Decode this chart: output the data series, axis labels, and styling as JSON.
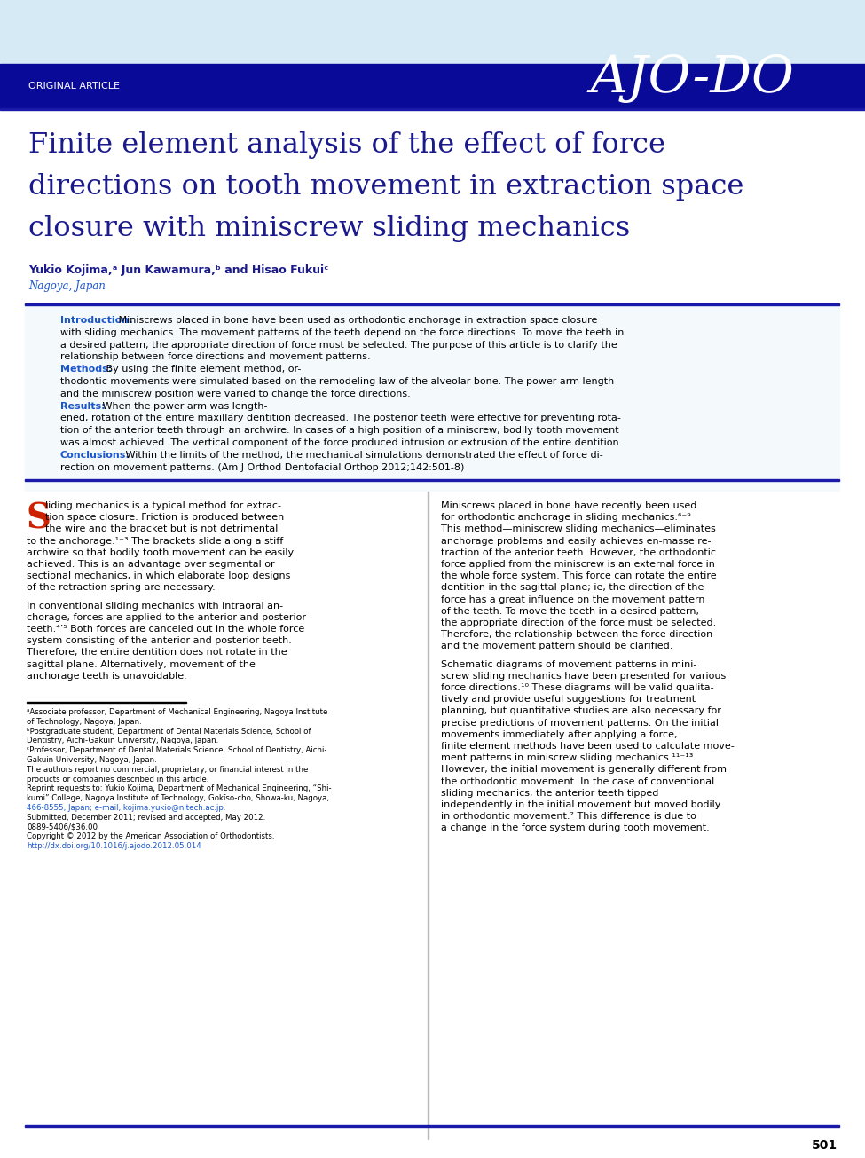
{
  "page_bg": "#ffffff",
  "header_light_bg": "#d6eaf5",
  "header_dark_bg": "#0a0a99",
  "header_text": "ORIGINAL ARTICLE",
  "journal_name": "AJO-DO",
  "title_line1": "Finite element analysis of the effect of force",
  "title_line2": "directions on tooth movement in extraction space",
  "title_line3": "closure with miniscrew sliding mechanics",
  "authors": "Yukio Kojima,ᵃ Jun Kawamura,ᵇ and Hisao Fukuiᶜ",
  "location": "Nagoya, Japan",
  "abstract_lines": [
    [
      "Introduction:",
      " Miniscrews placed in bone have been used as orthodontic anchorage in extraction space closure"
    ],
    [
      "",
      "with sliding mechanics. The movement patterns of the teeth depend on the force directions. To move the teeth in"
    ],
    [
      "",
      "a desired pattern, the appropriate direction of force must be selected. The purpose of this article is to clarify the"
    ],
    [
      "",
      "relationship between force directions and movement patterns. "
    ],
    [
      "Methods:",
      " By using the finite element method, or-"
    ],
    [
      "",
      "thodontic movements were simulated based on the remodeling law of the alveolar bone. The power arm length"
    ],
    [
      "",
      "and the miniscrew position were varied to change the force directions. "
    ],
    [
      "Results:",
      " When the power arm was length-"
    ],
    [
      "",
      "ened, rotation of the entire maxillary dentition decreased. The posterior teeth were effective for preventing rota-"
    ],
    [
      "",
      "tion of the anterior teeth through an archwire. In cases of a high position of a miniscrew, bodily tooth movement"
    ],
    [
      "",
      "was almost achieved. The vertical component of the force produced intrusion or extrusion of the entire dentition."
    ],
    [
      "Conclusions:",
      " Within the limits of the method, the mechanical simulations demonstrated the effect of force di-"
    ],
    [
      "",
      "rection on movement patterns. (Am J Orthod Dentofacial Orthop 2012;142:501-8)"
    ]
  ],
  "label_widths": {
    "Introduction:": 62,
    "Methods:": 48,
    "Results:": 44,
    "Conclusions:": 70
  },
  "col1_p1": [
    "liding mechanics is a typical method for extrac-",
    "tion space closure. Friction is produced between",
    "the wire and the bracket but is not detrimental",
    "to the anchorage.¹⁻³ The brackets slide along a stiff",
    "archwire so that bodily tooth movement can be easily",
    "achieved. This is an advantage over segmental or",
    "sectional mechanics, in which elaborate loop designs",
    "of the retraction spring are necessary."
  ],
  "col1_p2": [
    "In conventional sliding mechanics with intraoral an-",
    "chorage, forces are applied to the anterior and posterior",
    "teeth.⁴’⁵ Both forces are canceled out in the whole force",
    "system consisting of the anterior and posterior teeth.",
    "Therefore, the entire dentition does not rotate in the",
    "sagittal plane. Alternatively, movement of the",
    "anchorage teeth is unavoidable."
  ],
  "col2_p1": [
    "Miniscrews placed in bone have recently been used",
    "for orthodontic anchorage in sliding mechanics.⁶⁻⁹",
    "This method—miniscrew sliding mechanics—eliminates",
    "anchorage problems and easily achieves en-masse re-",
    "traction of the anterior teeth. However, the orthodontic",
    "force applied from the miniscrew is an external force in",
    "the whole force system. This force can rotate the entire",
    "dentition in the sagittal plane; ie, the direction of the",
    "force has a great influence on the movement pattern",
    "of the teeth. To move the teeth in a desired pattern,",
    "the appropriate direction of the force must be selected.",
    "Therefore, the relationship between the force direction",
    "and the movement pattern should be clarified."
  ],
  "col2_p2": [
    "Schematic diagrams of movement patterns in mini-",
    "screw sliding mechanics have been presented for various",
    "force directions.¹⁰ These diagrams will be valid qualita-",
    "tively and provide useful suggestions for treatment",
    "planning, but quantitative studies are also necessary for",
    "precise predictions of movement patterns. On the initial",
    "movements immediately after applying a force,",
    "finite element methods have been used to calculate move-",
    "ment patterns in miniscrew sliding mechanics.¹¹⁻¹³",
    "However, the initial movement is generally different from",
    "the orthodontic movement. In the case of conventional",
    "sliding mechanics, the anterior teeth tipped",
    "independently in the initial movement but moved bodily",
    "in orthodontic movement.² This difference is due to",
    "a change in the force system during tooth movement."
  ],
  "footnote_lines": [
    "ᵃAssociate professor, Department of Mechanical Engineering, Nagoya Institute",
    "of Technology, Nagoya, Japan.",
    "ᵇPostgraduate student, Department of Dental Materials Science, School of",
    "Dentistry, Aichi-Gakuin University, Nagoya, Japan.",
    "ᶜProfessor, Department of Dental Materials Science, School of Dentistry, Aichi-",
    "Gakuin University, Nagoya, Japan.",
    "The authors report no commercial, proprietary, or financial interest in the",
    "products or companies described in this article.",
    "Reprint requests to: Yukio Kojima, Department of Mechanical Engineering, “Shi-",
    "kumi” College, Nagoya Institute of Technology, Gokīso-cho, Showa-ku, Nagoya,",
    "466-8555, Japan; e-mail, kojima.yukio@nitech.ac.jp.",
    "Submitted, December 2011; revised and accepted, May 2012.",
    "0889-5406/$36.00",
    "Copyright © 2012 by the American Association of Orthodontists.",
    "http://dx.doi.org/10.1016/j.ajodo.2012.05.014"
  ],
  "page_number": "501",
  "dark_blue": "#000080",
  "title_blue": "#1a1a8c",
  "accent_blue": "#1a56cc",
  "drop_cap_red": "#cc2200",
  "link_blue": "#1a56cc",
  "label_color": "#1a56cc"
}
